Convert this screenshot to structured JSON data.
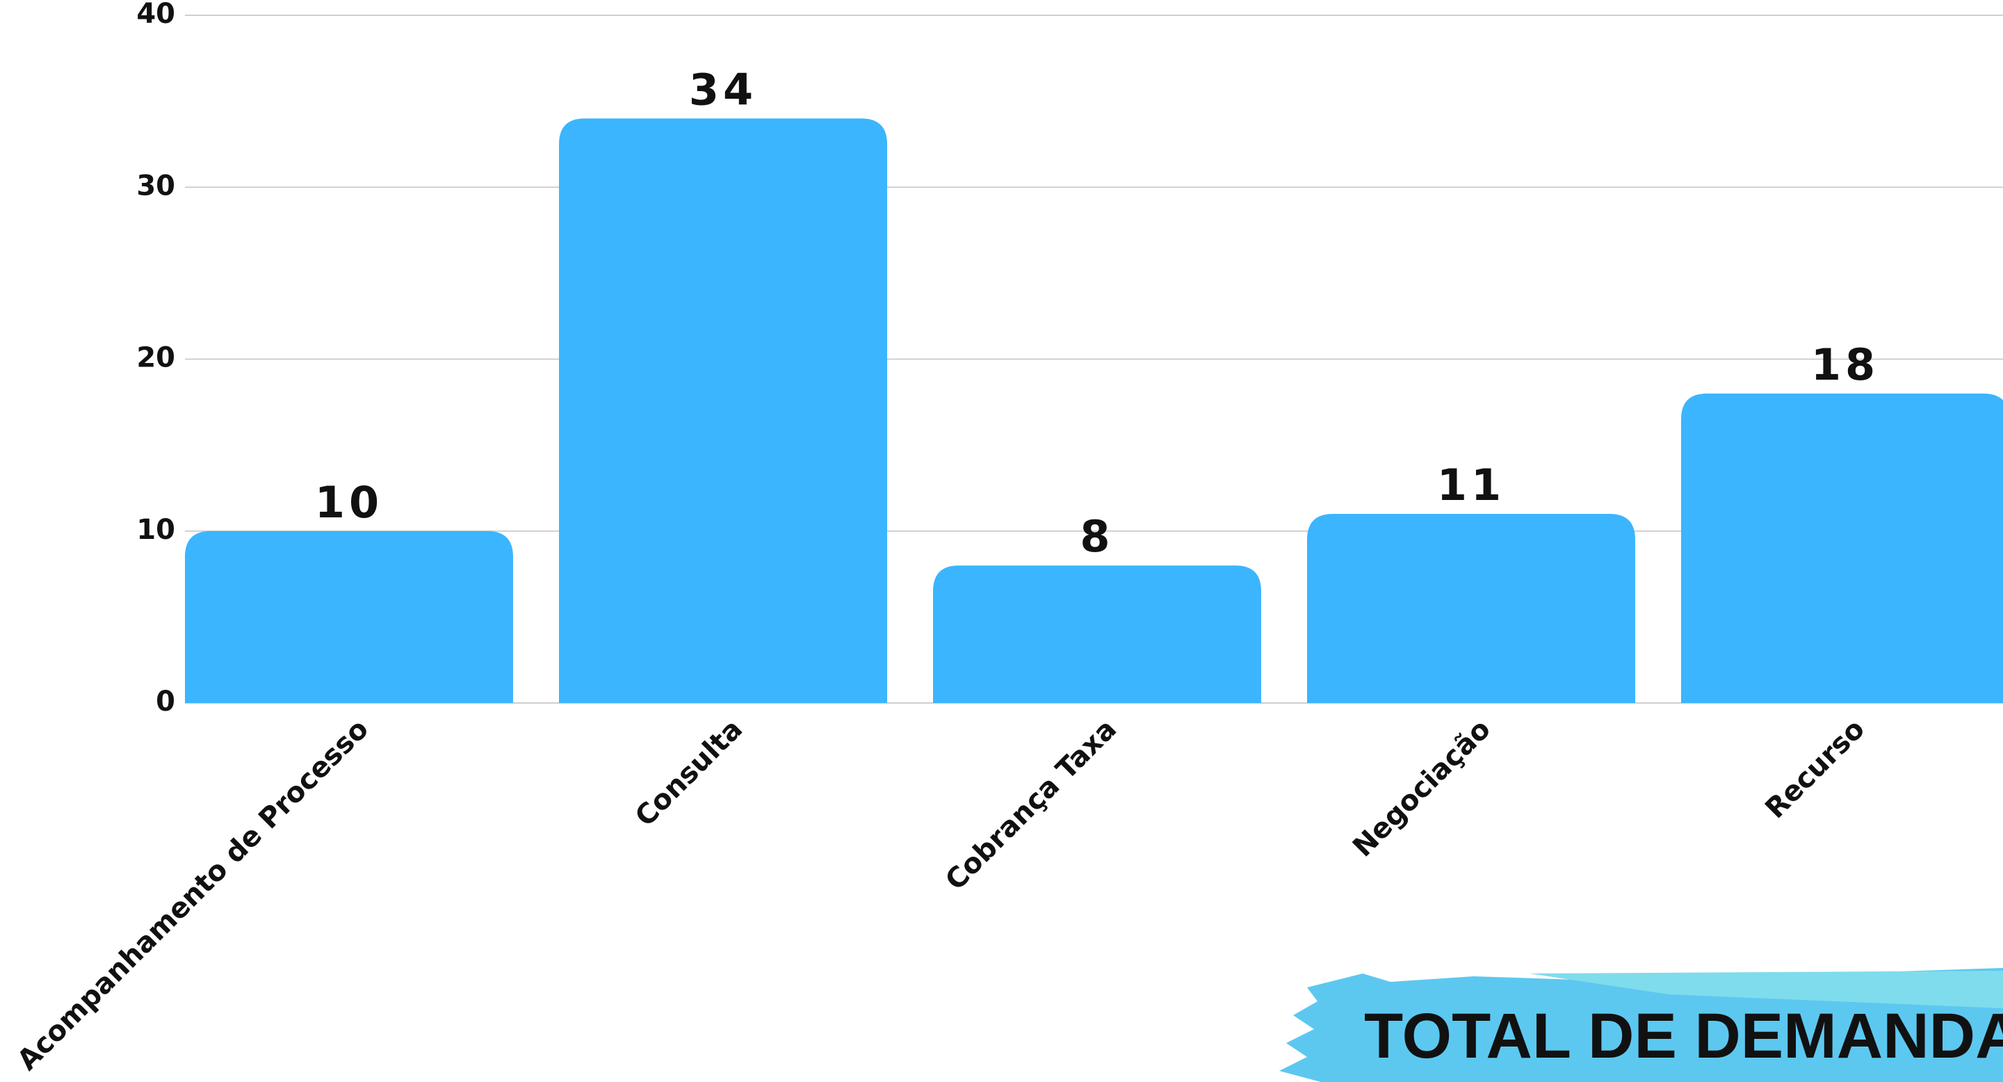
{
  "chart_data": {
    "type": "bar",
    "title": "TOTAL DE DEMANDA",
    "categories": [
      "Acompanhamento de Processo",
      "Consulta",
      "Cobrança Taxa",
      "Negociação",
      "Recurso"
    ],
    "values": [
      10,
      34,
      8,
      11,
      18
    ],
    "color": "#3bb5fe",
    "ylim": [
      0,
      40
    ],
    "yticks": [
      0,
      10,
      20,
      30,
      40
    ],
    "grid": true
  }
}
